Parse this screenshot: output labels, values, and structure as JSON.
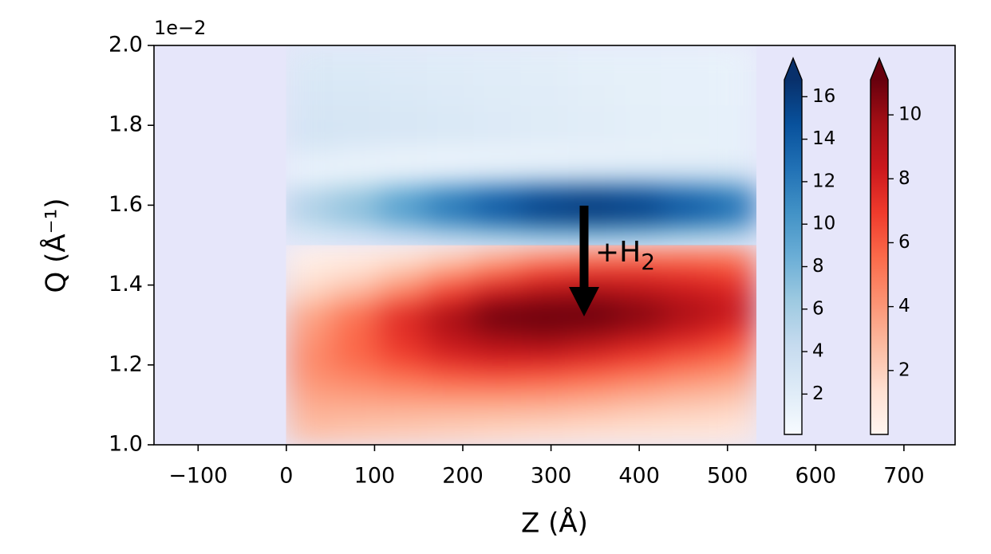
{
  "chart_data": {
    "type": "heatmap",
    "xlabel": "Z (Å)",
    "ylabel": "Q (Å⁻¹)",
    "y_offset_label": "1e−2",
    "background": "#e6e6fa",
    "xlim": [
      -150,
      758
    ],
    "ylim": [
      1.0,
      2.0
    ],
    "xticks": [
      {
        "value": -100,
        "label": "−100"
      },
      0,
      100,
      200,
      300,
      400,
      500,
      600,
      700
    ],
    "yticks": [
      {
        "value": 1.0,
        "label": "1.0"
      },
      1.2,
      1.4,
      1.6,
      1.8,
      {
        "value": 2.0,
        "label": "2.0"
      }
    ],
    "annotation": {
      "text": "+H",
      "subscript": "2"
    },
    "series": [
      {
        "extent": [
          0,
          532,
          1.5,
          2.0
        ],
        "clim": [
          0.1,
          16.8
        ],
        "extend": "max",
        "colors": [
          "#f7fbff",
          "#deebf7",
          "#c6dbef",
          "#9ecae1",
          "#6baed6",
          "#4292c6",
          "#2171b5",
          "#08519c",
          "#08306b"
        ],
        "cbar_ticks": [
          2,
          4,
          6,
          8,
          10,
          12,
          14,
          16
        ],
        "z": [
          [
            2.6,
            3.3,
            4.5,
            5.6,
            6.5,
            7.2,
            7.4,
            7.0,
            6.3,
            5.6
          ],
          [
            5.5,
            7.0,
            9.5,
            12.0,
            14.0,
            15.5,
            16.0,
            15.5,
            14.0,
            12.5
          ],
          [
            5.0,
            6.5,
            9.0,
            11.5,
            13.5,
            15.0,
            15.5,
            15.0,
            13.5,
            12.0
          ],
          [
            1.0,
            1.3,
            1.8,
            2.3,
            2.9,
            3.4,
            3.8,
            4.0,
            4.0,
            3.9
          ],
          [
            2.0,
            1.5,
            1.2,
            1.0,
            1.0,
            1.0,
            1.1,
            1.2,
            1.3,
            1.4
          ],
          [
            3.2,
            3.0,
            2.8,
            2.6,
            2.4,
            2.2,
            2.0,
            1.8,
            1.6,
            1.5
          ],
          [
            3.0,
            2.9,
            2.7,
            2.5,
            2.3,
            2.1,
            1.9,
            1.7,
            1.6,
            1.5
          ],
          [
            2.8,
            2.7,
            2.5,
            2.3,
            2.1,
            2.0,
            1.8,
            1.6,
            1.5,
            1.4
          ],
          [
            2.6,
            2.5,
            2.3,
            2.2,
            2.0,
            1.9,
            1.7,
            1.6,
            1.5,
            1.4
          ],
          [
            2.4,
            2.3,
            2.2,
            2.0,
            1.9,
            1.8,
            1.6,
            1.5,
            1.4,
            1.3
          ]
        ]
      },
      {
        "extent": [
          0,
          532,
          1.0,
          1.5
        ],
        "clim": [
          0,
          11.1
        ],
        "extend": "max",
        "colors": [
          "#fff5f0",
          "#fee0d2",
          "#fcbba1",
          "#fc9272",
          "#fb6a4a",
          "#ef3b2c",
          "#cb181d",
          "#a50f15",
          "#67000d"
        ],
        "cbar_ticks": [
          2,
          4,
          6,
          8,
          10
        ],
        "z": [
          [
            2.5,
            2.3,
            2.1,
            1.9,
            1.7,
            1.5,
            1.3,
            1.1,
            1.0,
            0.9
          ],
          [
            3.0,
            2.9,
            2.8,
            2.7,
            2.6,
            2.5,
            2.3,
            2.0,
            1.8,
            1.6
          ],
          [
            3.6,
            3.8,
            4.0,
            4.1,
            4.1,
            4.0,
            3.7,
            3.3,
            2.9,
            2.6
          ],
          [
            4.2,
            4.8,
            5.4,
            6.0,
            6.2,
            6.0,
            5.6,
            5.0,
            4.4,
            3.9
          ],
          [
            4.4,
            5.6,
            6.8,
            7.8,
            8.3,
            8.2,
            7.7,
            7.0,
            6.2,
            5.5
          ],
          [
            4.0,
            5.6,
            7.4,
            9.0,
            9.9,
            10.2,
            9.8,
            9.0,
            8.0,
            7.0
          ],
          [
            3.5,
            5.2,
            7.5,
            9.5,
            11.0,
            11.5,
            11.3,
            10.5,
            9.5,
            8.5
          ],
          [
            2.0,
            3.2,
            5.0,
            7.0,
            8.7,
            9.7,
            9.9,
            9.4,
            8.7,
            8.0
          ],
          [
            1.0,
            1.6,
            2.8,
            4.3,
            5.8,
            7.0,
            7.5,
            7.5,
            7.2,
            6.8
          ],
          [
            0.4,
            0.6,
            1.0,
            1.8,
            2.8,
            3.7,
            4.3,
            4.6,
            4.7,
            4.6
          ]
        ]
      }
    ]
  }
}
